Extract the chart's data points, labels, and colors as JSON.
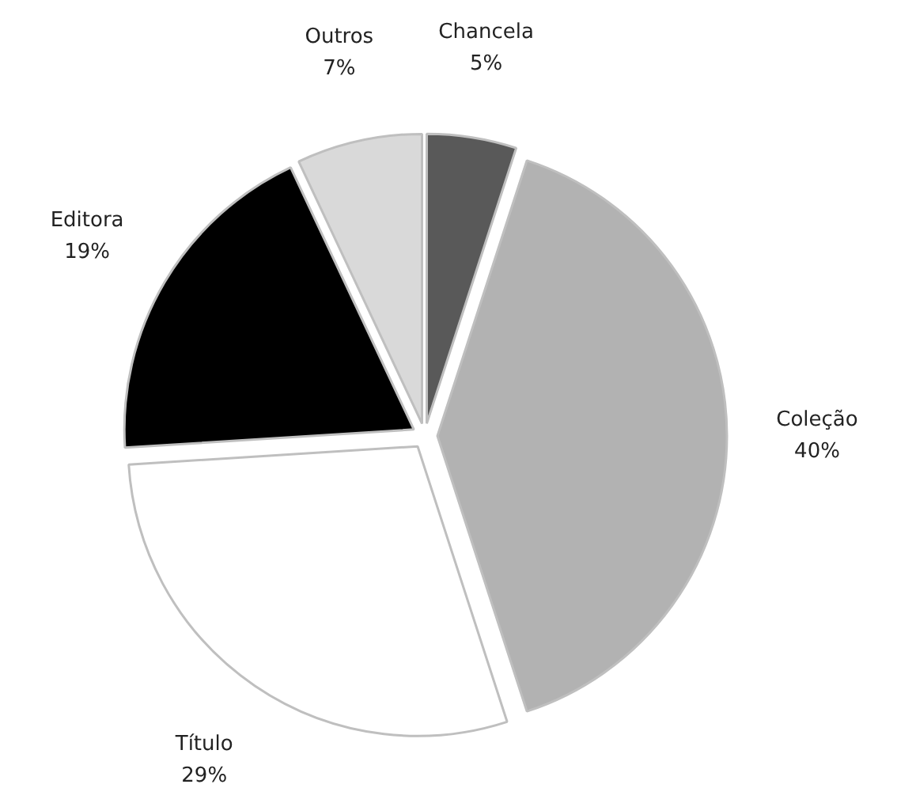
{
  "chart_data": {
    "type": "pie",
    "categories": [
      "Chancela",
      "Coleção",
      "Título",
      "Editora",
      "Outros"
    ],
    "values": [
      5,
      40,
      29,
      19,
      7
    ],
    "value_labels": [
      "5%",
      "40%",
      "29%",
      "19%",
      "7%"
    ],
    "colors": [
      "#595959",
      "#b2b2b2",
      "#ffffff",
      "#000000",
      "#d9d9d9"
    ]
  }
}
